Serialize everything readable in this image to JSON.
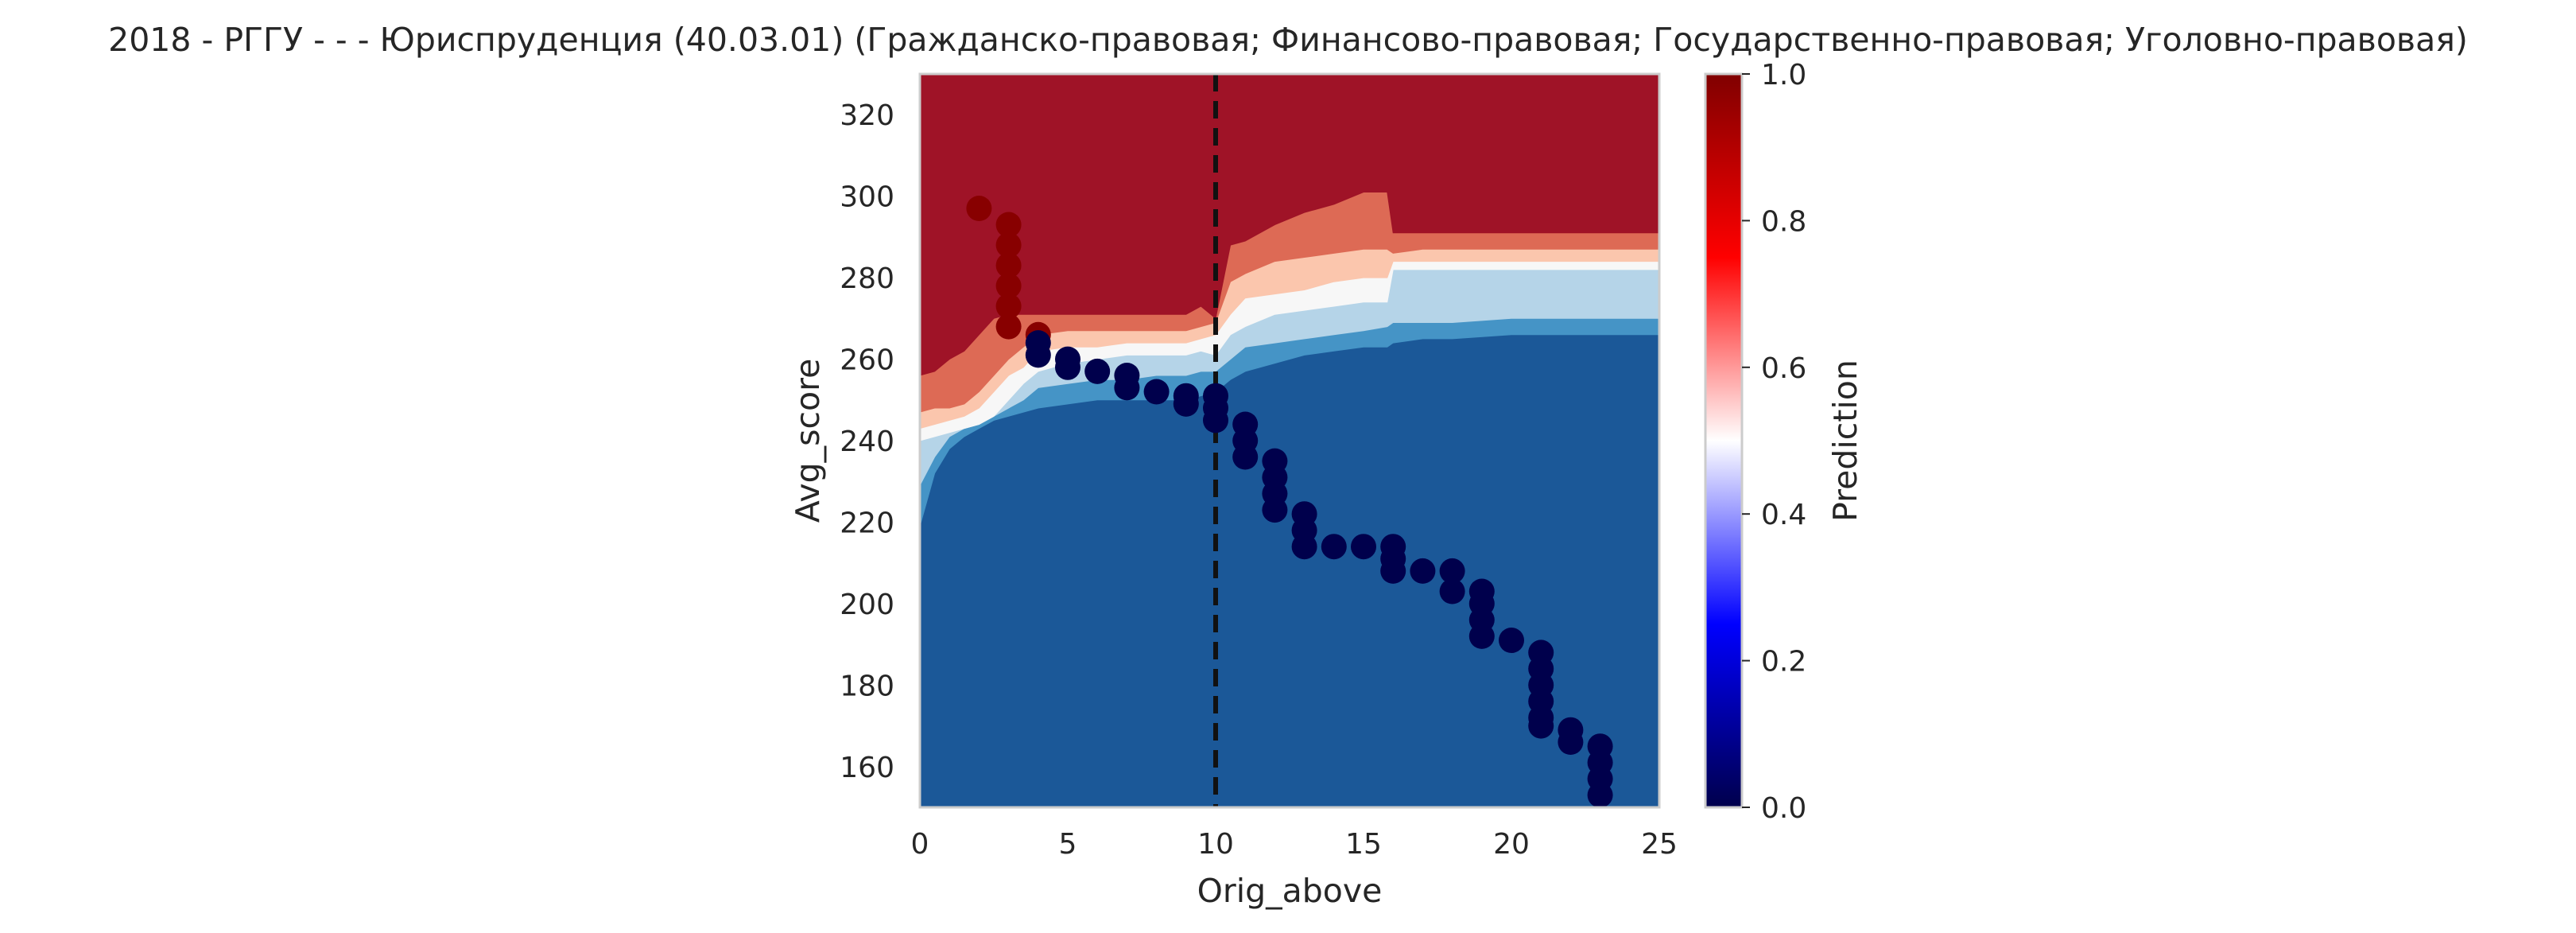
{
  "chart_data": {
    "type": "contour",
    "title": "2018 - РГГУ - - - Юриспруденция (40.03.01) (Гражданско-правовая; Финансово-правовая; Государственно-правовая; Уголовно-правовая)",
    "xlabel": "Orig_above",
    "ylabel": "Avg_score",
    "xlim": [
      0,
      25
    ],
    "ylim": [
      150,
      330
    ],
    "x_ticks": [
      0,
      5,
      10,
      15,
      20,
      25
    ],
    "y_ticks": [
      160,
      180,
      200,
      220,
      240,
      260,
      280,
      300,
      320
    ],
    "grid": false,
    "threshold_line": {
      "x": 10,
      "style": "dashed",
      "color": "#111111"
    },
    "colorbar": {
      "label": "Prediction",
      "colormap": "seismic",
      "ticks": [
        "0.0",
        "0.2",
        "0.4",
        "0.6",
        "0.8",
        "1.0"
      ],
      "range": [
        0,
        1
      ]
    },
    "contour_fill_colors": [
      "#1b5898",
      "#4594c6",
      "#b5d4e8",
      "#f7f7f7",
      "#fbc6ad",
      "#dd6a55",
      "#9f1327"
    ],
    "contour_boundaries": {
      "x": [
        0,
        0.5,
        1,
        1.5,
        2,
        2.5,
        3,
        3.5,
        4,
        5,
        6,
        7,
        8,
        9,
        9.5,
        10,
        10.5,
        11,
        12,
        13,
        14,
        15,
        15.8,
        16,
        17,
        18,
        20,
        22,
        25
      ],
      "b1": [
        219,
        232,
        238,
        241,
        243,
        245,
        246,
        247,
        248,
        249,
        250,
        250,
        250,
        250,
        251,
        252,
        255,
        257,
        259,
        261,
        262,
        263,
        263,
        264,
        265,
        265,
        266,
        266,
        266
      ],
      "b2": [
        229,
        236,
        241,
        243,
        244,
        246,
        248,
        250,
        253,
        254,
        255,
        255,
        256,
        256,
        257,
        257,
        260,
        263,
        264,
        265,
        266,
        267,
        268,
        269,
        269,
        269,
        270,
        270,
        270
      ],
      "b3": [
        240,
        241,
        242,
        243,
        244,
        246,
        250,
        254,
        257,
        259,
        260,
        261,
        261,
        261,
        262,
        261,
        266,
        268,
        271,
        272,
        273,
        274,
        274,
        282,
        282,
        282,
        282,
        282,
        282
      ],
      "b4": [
        243,
        244,
        245,
        246,
        248,
        252,
        256,
        258,
        262,
        263,
        263,
        264,
        264,
        264,
        265,
        266,
        271,
        275,
        276,
        277,
        279,
        280,
        280,
        284,
        284,
        284,
        284,
        284,
        284
      ],
      "b5": [
        247,
        248,
        248,
        249,
        252,
        256,
        260,
        263,
        266,
        267,
        267,
        267,
        267,
        267,
        268,
        269,
        279,
        281,
        284,
        285,
        286,
        287,
        287,
        286,
        287,
        287,
        287,
        287,
        287
      ],
      "b6": [
        256,
        257,
        260,
        262,
        266,
        270,
        271,
        271,
        271,
        271,
        271,
        271,
        271,
        271,
        273,
        270,
        288,
        289,
        293,
        296,
        298,
        301,
        301,
        291,
        291,
        291,
        291,
        291,
        291
      ]
    },
    "series": [
      {
        "color": "#880000",
        "points": [
          [
            2,
            297
          ],
          [
            3,
            293
          ],
          [
            3,
            288
          ],
          [
            3,
            283
          ],
          [
            3,
            278
          ],
          [
            3,
            273
          ],
          [
            3,
            268
          ],
          [
            4,
            266
          ]
        ]
      },
      {
        "color": "#00004c",
        "points": [
          [
            4,
            264
          ],
          [
            4,
            261
          ],
          [
            5,
            260
          ],
          [
            5,
            258
          ],
          [
            6,
            257
          ],
          [
            7,
            256
          ],
          [
            7,
            253
          ],
          [
            8,
            252
          ],
          [
            9,
            251
          ],
          [
            9,
            249
          ],
          [
            10,
            251
          ],
          [
            10,
            248
          ],
          [
            10,
            245
          ],
          [
            11,
            244
          ],
          [
            11,
            240
          ],
          [
            11,
            236
          ],
          [
            12,
            235
          ],
          [
            12,
            231
          ],
          [
            12,
            227
          ],
          [
            12,
            223
          ],
          [
            13,
            222
          ],
          [
            13,
            218
          ],
          [
            13,
            214
          ],
          [
            14,
            214
          ],
          [
            15,
            214
          ],
          [
            16,
            214
          ],
          [
            16,
            211
          ],
          [
            16,
            208
          ],
          [
            17,
            208
          ],
          [
            18,
            208
          ],
          [
            18,
            203
          ],
          [
            19,
            203
          ],
          [
            19,
            200
          ],
          [
            19,
            196
          ],
          [
            19,
            192
          ],
          [
            20,
            191
          ],
          [
            21,
            188
          ],
          [
            21,
            184
          ],
          [
            21,
            180
          ],
          [
            21,
            176
          ],
          [
            21,
            172
          ],
          [
            21,
            170
          ],
          [
            22,
            169
          ],
          [
            22,
            166
          ],
          [
            23,
            165
          ],
          [
            23,
            161
          ],
          [
            23,
            157
          ],
          [
            23,
            153
          ]
        ]
      }
    ]
  }
}
